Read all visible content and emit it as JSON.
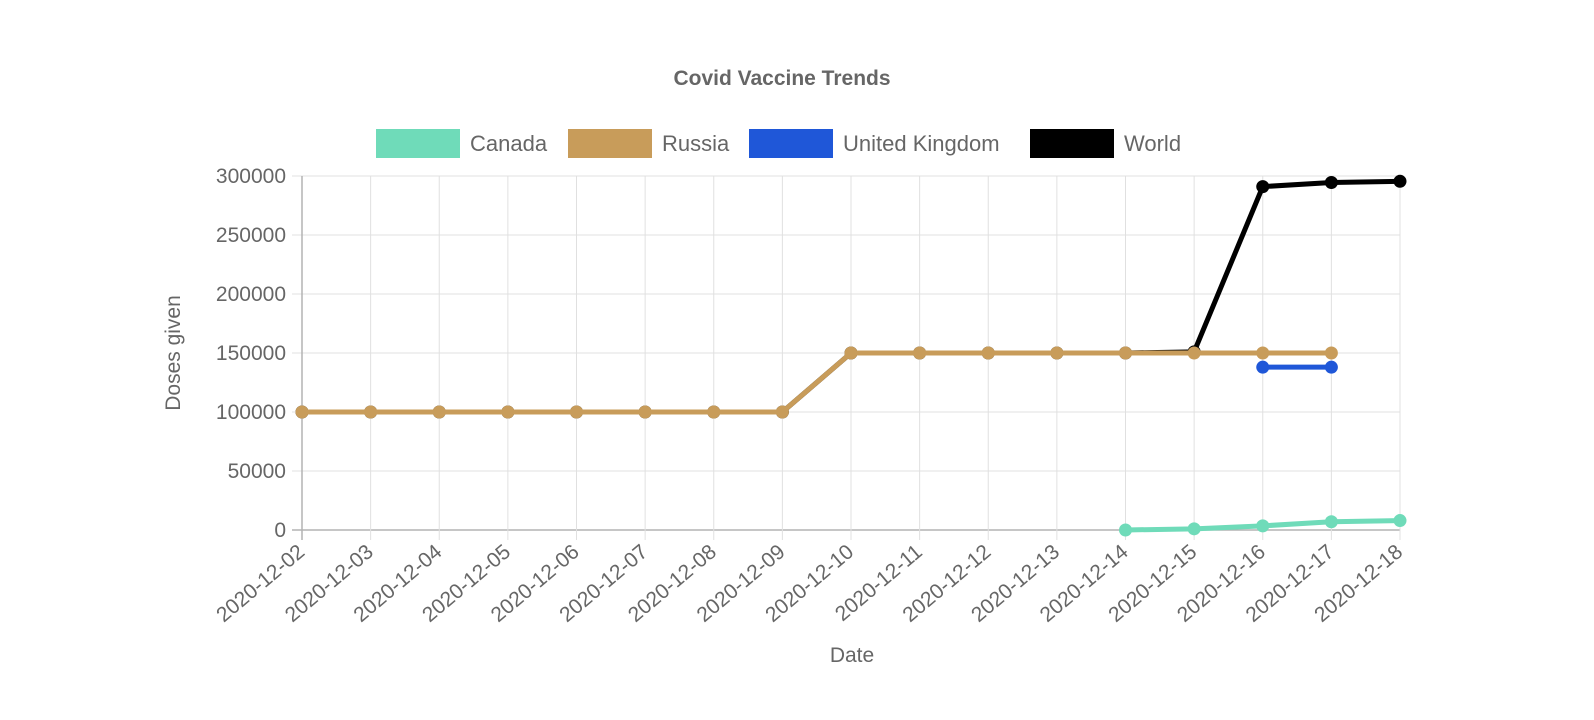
{
  "chart_data": {
    "type": "line",
    "title": "Covid Vaccine Trends",
    "xlabel": "Date",
    "ylabel": "Doses given",
    "ylim": [
      0,
      300000
    ],
    "y_ticks": [
      "0",
      "50000",
      "100000",
      "150000",
      "200000",
      "250000",
      "300000"
    ],
    "y_tick_values": [
      0,
      50000,
      100000,
      150000,
      200000,
      250000,
      300000
    ],
    "grid": true,
    "legend_position": "top",
    "categories": [
      "2020-12-02",
      "2020-12-03",
      "2020-12-04",
      "2020-12-05",
      "2020-12-06",
      "2020-12-07",
      "2020-12-08",
      "2020-12-09",
      "2020-12-10",
      "2020-12-11",
      "2020-12-12",
      "2020-12-13",
      "2020-12-14",
      "2020-12-15",
      "2020-12-16",
      "2020-12-17",
      "2020-12-18"
    ],
    "series": [
      {
        "name": "World",
        "color": "#000000",
        "values": [
          100000,
          100000,
          100000,
          100000,
          100000,
          100000,
          100000,
          100000,
          150000,
          150000,
          150000,
          150000,
          150000,
          151000,
          291000,
          294500,
          295500
        ]
      },
      {
        "name": "Russia",
        "color": "#c89c5a",
        "values": [
          100000,
          100000,
          100000,
          100000,
          100000,
          100000,
          100000,
          100000,
          150000,
          150000,
          150000,
          150000,
          150000,
          150000,
          150000,
          150000,
          null
        ]
      },
      {
        "name": "United Kingdom",
        "color": "#1f57d8",
        "values": [
          null,
          null,
          null,
          null,
          null,
          null,
          null,
          null,
          null,
          null,
          null,
          null,
          null,
          null,
          138000,
          138000,
          null
        ]
      },
      {
        "name": "Canada",
        "color": "#6fdbb9",
        "values": [
          null,
          null,
          null,
          null,
          null,
          null,
          null,
          null,
          null,
          null,
          null,
          null,
          0,
          1000,
          3500,
          7000,
          8000
        ]
      }
    ],
    "legend": [
      {
        "name": "Canada",
        "color": "#6fdbb9"
      },
      {
        "name": "Russia",
        "color": "#c89c5a"
      },
      {
        "name": "United Kingdom",
        "color": "#1f57d8"
      },
      {
        "name": "World",
        "color": "#000000"
      }
    ]
  }
}
